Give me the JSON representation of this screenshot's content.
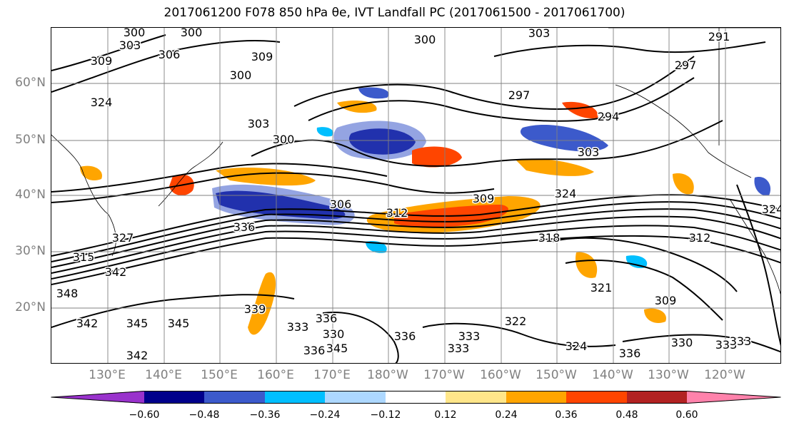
{
  "title": "2017061200 F078 850 hPa θe, IVT Landfall PC (2017061500 - 2017061700)",
  "map": {
    "lat_labels": [
      "60°N",
      "50°N",
      "40°N",
      "30°N",
      "20°N"
    ],
    "lon_labels": [
      "130°E",
      "140°E",
      "150°E",
      "160°E",
      "170°E",
      "180°W",
      "170°W",
      "160°W",
      "150°W",
      "140°W",
      "130°W",
      "120°W"
    ],
    "contour_labels": [
      "300",
      "300",
      "303",
      "306",
      "309",
      "309",
      "300",
      "300",
      "303",
      "291",
      "297",
      "324",
      "303",
      "300",
      "297",
      "294",
      "303",
      "306",
      "312",
      "309",
      "324",
      "336",
      "318",
      "312",
      "315",
      "342",
      "348",
      "342",
      "345",
      "345",
      "339",
      "336",
      "333",
      "330",
      "336",
      "333",
      "336",
      "345",
      "342",
      "333",
      "322",
      "324",
      "330",
      "333",
      "336",
      "309",
      "321",
      "327",
      "324",
      "333"
    ]
  },
  "colorbar": {
    "ticks": [
      "−0.60",
      "−0.48",
      "−0.36",
      "−0.24",
      "−0.12",
      "0.12",
      "0.24",
      "0.36",
      "0.48",
      "0.60"
    ],
    "colors": [
      "#9932cc",
      "#00008b",
      "#3c5acb",
      "#00bfff",
      "#add8ff",
      "#ffffff",
      "#ffe68a",
      "#ffa500",
      "#ff4500",
      "#b22222",
      "#ff82ab"
    ]
  }
}
